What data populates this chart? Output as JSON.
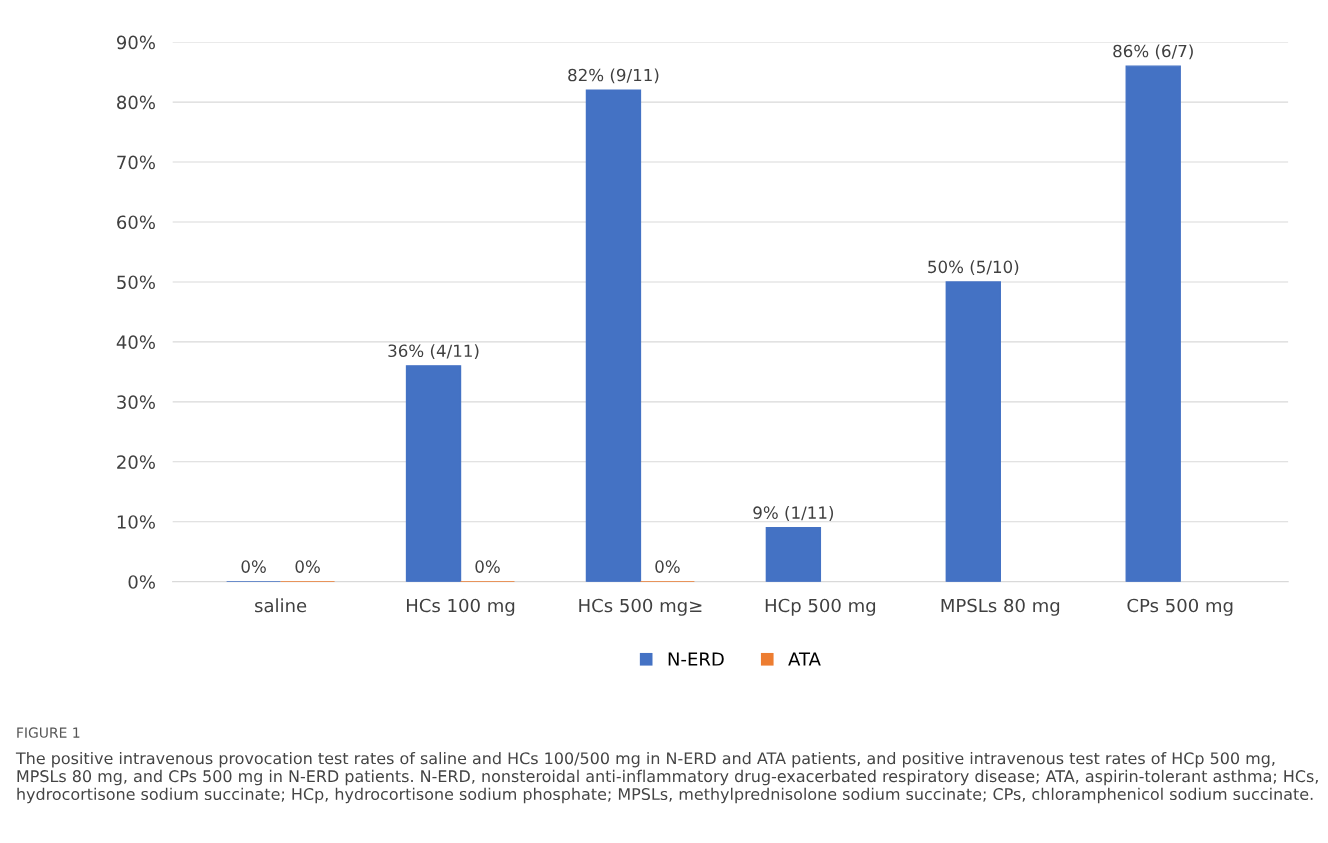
{
  "chart_data": {
    "type": "bar",
    "title": "FIGURE 1",
    "categories": [
      "saline",
      "HCs 100 mg",
      "HCs 500 mg≥",
      "HCp 500 mg",
      "MPSLs 80 mg",
      "CPs 500 mg"
    ],
    "series": [
      {
        "name": "N-ERD",
        "color": "#4472c4",
        "values": [
          0,
          36,
          82,
          9,
          50,
          86
        ],
        "value_labels": [
          "0%",
          "36% (4/11)",
          "82% (9/11)",
          "9% (1/11)",
          "50% (5/10)",
          "86% (6/7)"
        ]
      },
      {
        "name": "ATA",
        "color": "#ed7d31",
        "values": [
          0,
          0,
          0,
          null,
          null,
          null
        ],
        "value_labels": [
          "0%",
          "0%",
          "0%",
          null,
          null,
          null
        ]
      }
    ],
    "ylim": [
      0,
      90
    ],
    "yticks": [
      {
        "value": 0,
        "label": "0%"
      },
      {
        "value": 10,
        "label": "10%"
      },
      {
        "value": 20,
        "label": "20%"
      },
      {
        "value": 30,
        "label": "30%"
      },
      {
        "value": 40,
        "label": "40%"
      },
      {
        "value": 50,
        "label": "50%"
      },
      {
        "value": 60,
        "label": "60%"
      },
      {
        "value": 70,
        "label": "70%"
      },
      {
        "value": 80,
        "label": "80%"
      },
      {
        "value": 90,
        "label": "90%"
      }
    ],
    "grid": "y",
    "legend": "bottom",
    "annotations": [
      "The positive intravenous provocation test rates of saline and HCs 100/500 mg in N-ERD and ATA patients, and positive intravenous test rates of HCp 500 mg, MPSLs 80 mg, and CPs 500 mg in N-ERD patients. N-ERD, nonsteroidal anti-inflammatory drug-exacerbated respiratory disease; ATA, aspirin-tolerant asthma; HCs, hydrocortisone sodium succinate; HCp, hydrocortisone sodium phosphate; MPSLs, methylprednisolone sodium succinate; CPs, chloramphenicol sodium succinate."
    ]
  }
}
